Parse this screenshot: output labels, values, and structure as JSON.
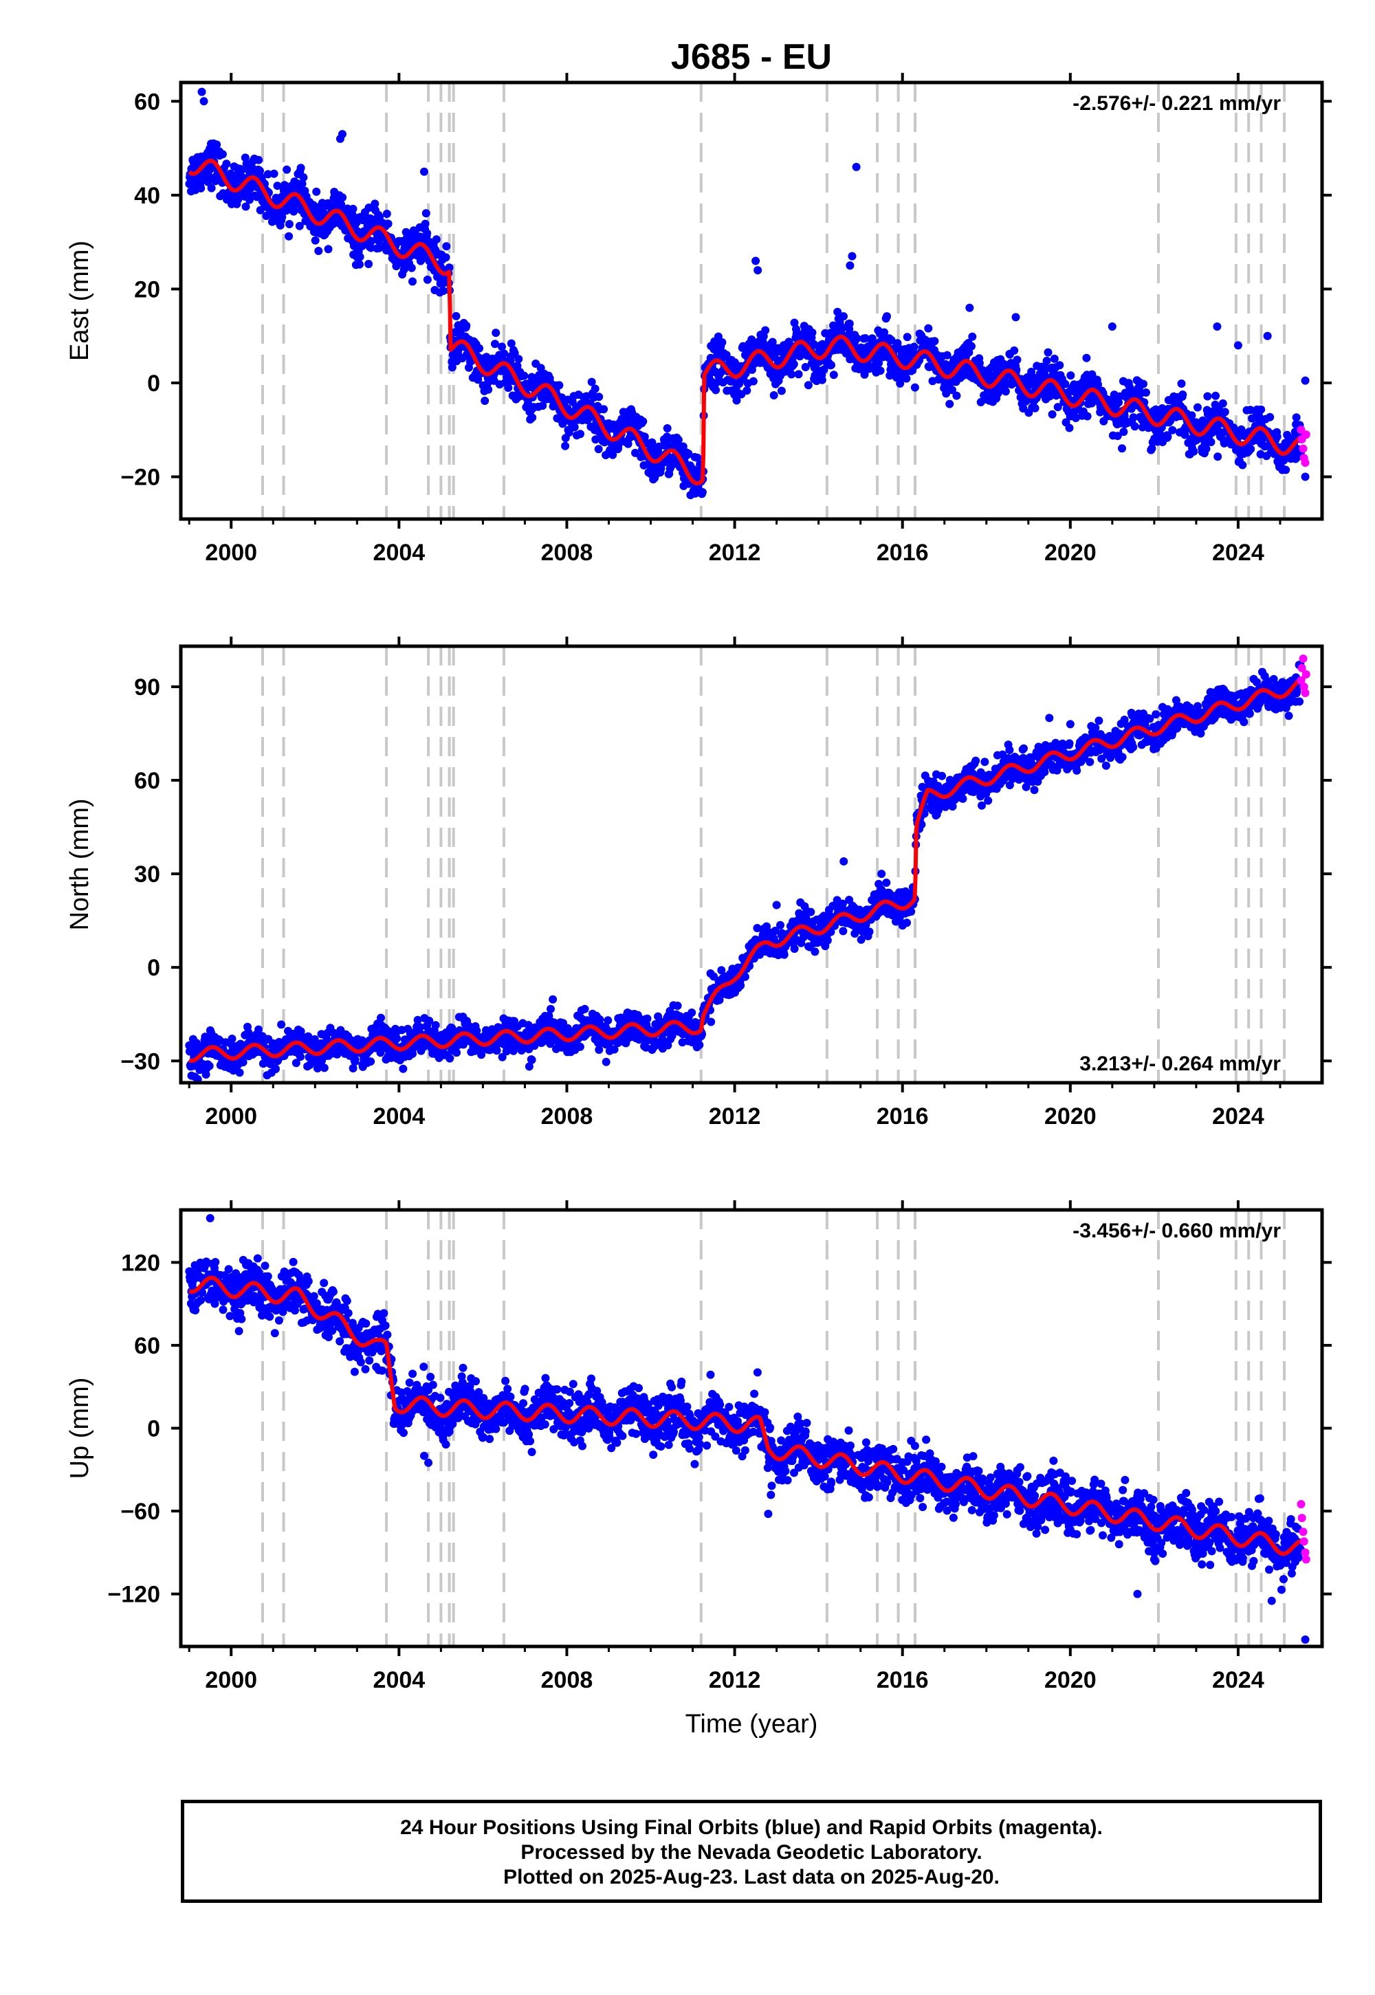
{
  "title": "J685 - EU",
  "chart_data": [
    {
      "type": "scatter",
      "panel": "east",
      "ylabel": "East (mm)",
      "xlim": [
        1998.8,
        2026.0
      ],
      "ylim": [
        -29,
        64
      ],
      "yticks": [
        -20,
        0,
        20,
        40,
        60
      ],
      "xticks": [
        2000,
        2004,
        2008,
        2012,
        2016,
        2020,
        2024
      ],
      "x_tick_labels": [
        "2000",
        "2004",
        "2008",
        "2012",
        "2016",
        "2020",
        "2024"
      ],
      "y_tick_labels": [
        "−20",
        "0",
        "20",
        "40",
        "60"
      ],
      "rate_text": "-2.576+/- 0.221 mm/yr",
      "rate_position": "top-right",
      "trend_knots": [
        [
          1999.0,
          47
        ],
        [
          2005.2,
          25
        ],
        [
          2005.23,
          8
        ],
        [
          2011.25,
          -20
        ],
        [
          2011.27,
          2
        ],
        [
          2014.3,
          8
        ],
        [
          2016.3,
          5
        ],
        [
          2025.6,
          -14
        ]
      ],
      "seasonal_amplitude": 2.2,
      "scatter_noise": 2.4,
      "outliers": [
        [
          1999.3,
          62
        ],
        [
          1999.35,
          60
        ],
        [
          2002.6,
          52
        ],
        [
          2002.65,
          53
        ],
        [
          2004.6,
          45
        ],
        [
          2012.5,
          26
        ],
        [
          2012.55,
          24
        ],
        [
          2014.9,
          46
        ],
        [
          2014.8,
          27
        ],
        [
          2014.75,
          25
        ],
        [
          2017.6,
          16
        ],
        [
          2018.7,
          14
        ],
        [
          2021.0,
          12
        ],
        [
          2023.5,
          12
        ],
        [
          2024.7,
          10
        ],
        [
          2024.0,
          8
        ],
        [
          2025.6,
          0.5
        ],
        [
          2025.6,
          -20
        ]
      ],
      "rapid_points": [
        [
          2025.5,
          -10
        ],
        [
          2025.52,
          -12
        ],
        [
          2025.55,
          -14
        ],
        [
          2025.57,
          -16
        ],
        [
          2025.6,
          -17
        ],
        [
          2025.62,
          -11
        ]
      ],
      "series": [
        {
          "name": "Final Orbits (blue)",
          "color": "#0000ff"
        },
        {
          "name": "Rapid Orbits (magenta)",
          "color": "#ff00ff"
        },
        {
          "name": "fit",
          "color": "#ff0000"
        }
      ]
    },
    {
      "type": "scatter",
      "panel": "north",
      "ylabel": "North (mm)",
      "xlim": [
        1998.8,
        2026.0
      ],
      "ylim": [
        -37,
        103
      ],
      "yticks": [
        -30,
        0,
        30,
        60,
        90
      ],
      "xticks": [
        2000,
        2004,
        2008,
        2012,
        2016,
        2020,
        2024
      ],
      "x_tick_labels": [
        "2000",
        "2004",
        "2008",
        "2012",
        "2016",
        "2020",
        "2024"
      ],
      "y_tick_labels": [
        "−30",
        "0",
        "30",
        "60",
        "90"
      ],
      "rate_text": "3.213+/- 0.264 mm/yr",
      "rate_position": "bottom-right",
      "trend_knots": [
        [
          1999.0,
          -28
        ],
        [
          2011.2,
          -19
        ],
        [
          2011.25,
          -15
        ],
        [
          2012.0,
          -2
        ],
        [
          2012.8,
          8
        ],
        [
          2016.3,
          22
        ],
        [
          2016.33,
          45
        ],
        [
          2016.6,
          55
        ],
        [
          2025.6,
          91
        ]
      ],
      "seasonal_amplitude": 2.0,
      "scatter_noise": 2.6,
      "outliers": [
        [
          2013.0,
          20
        ],
        [
          2014.6,
          34
        ],
        [
          2015.5,
          30
        ],
        [
          2016.9,
          54
        ],
        [
          2019.5,
          80
        ],
        [
          2020.0,
          78
        ]
      ],
      "rapid_points": [
        [
          2025.5,
          92
        ],
        [
          2025.52,
          96
        ],
        [
          2025.55,
          99
        ],
        [
          2025.57,
          90
        ],
        [
          2025.6,
          88
        ],
        [
          2025.62,
          94
        ]
      ],
      "series": [
        {
          "name": "Final Orbits (blue)",
          "color": "#0000ff"
        },
        {
          "name": "Rapid Orbits (magenta)",
          "color": "#ff00ff"
        },
        {
          "name": "fit",
          "color": "#ff0000"
        }
      ]
    },
    {
      "type": "scatter",
      "panel": "up",
      "ylabel": "Up (mm)",
      "xlim": [
        1998.8,
        2026.0
      ],
      "ylim": [
        -158,
        158
      ],
      "yticks": [
        -120,
        -60,
        0,
        60,
        120
      ],
      "xticks": [
        2000,
        2004,
        2008,
        2012,
        2016,
        2020,
        2024
      ],
      "x_tick_labels": [
        "2000",
        "2004",
        "2008",
        "2012",
        "2016",
        "2020",
        "2024"
      ],
      "y_tick_labels": [
        "−120",
        "−60",
        "0",
        "60",
        "120"
      ],
      "xlabel": "Time (year)",
      "rate_text": "-3.456+/- 0.660 mm/yr",
      "rate_position": "top-right",
      "trend_knots": [
        [
          1999.0,
          105
        ],
        [
          2001.6,
          95
        ],
        [
          2003.5,
          58
        ],
        [
          2003.7,
          58
        ],
        [
          2003.9,
          18
        ],
        [
          2005.0,
          15
        ],
        [
          2011.3,
          5
        ],
        [
          2012.6,
          2
        ],
        [
          2012.8,
          -15
        ],
        [
          2025.6,
          -88
        ]
      ],
      "seasonal_amplitude": 6.0,
      "scatter_noise": 9.0,
      "outliers": [
        [
          1999.5,
          152
        ],
        [
          2003.6,
          78
        ],
        [
          2004.6,
          -20
        ],
        [
          2004.7,
          -25
        ],
        [
          2012.8,
          -62
        ],
        [
          2021.6,
          -120
        ],
        [
          2022.0,
          -95
        ],
        [
          2024.8,
          -125
        ],
        [
          2025.6,
          -153
        ],
        [
          2014.3,
          -40
        ],
        [
          2015.2,
          -50
        ]
      ],
      "rapid_points": [
        [
          2025.5,
          -55
        ],
        [
          2025.52,
          -65
        ],
        [
          2025.55,
          -75
        ],
        [
          2025.57,
          -82
        ],
        [
          2025.6,
          -90
        ],
        [
          2025.62,
          -95
        ]
      ],
      "series": [
        {
          "name": "Final Orbits (blue)",
          "color": "#0000ff"
        },
        {
          "name": "Rapid Orbits (magenta)",
          "color": "#ff00ff"
        },
        {
          "name": "fit",
          "color": "#ff0000"
        }
      ]
    }
  ],
  "event_years": [
    2000.75,
    2001.25,
    2003.7,
    2004.7,
    2005.0,
    2005.2,
    2005.3,
    2006.5,
    2011.2,
    2014.2,
    2015.4,
    2015.9,
    2016.3,
    2022.1,
    2023.95,
    2024.25,
    2024.55,
    2025.1
  ],
  "footer": {
    "line1": "24 Hour Positions Using Final Orbits (blue) and Rapid Orbits (magenta).",
    "line2": "Processed by the Nevada Geodetic Laboratory.",
    "line3": "Plotted on 2025-Aug-23. Last data on 2025-Aug-20."
  }
}
